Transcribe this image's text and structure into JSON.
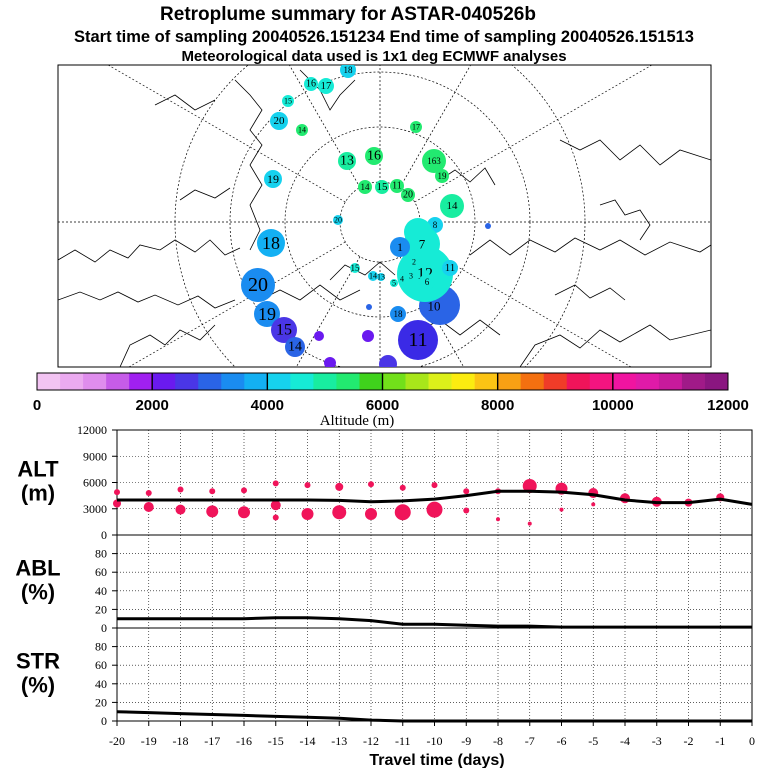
{
  "header": {
    "title": "Retroplume summary for ASTAR-040526b",
    "line2": "Start time of sampling 20040526.151234      End time of sampling 20040526.151513",
    "line3": "Meteorological data used is 1x1 deg ECMWF analyses"
  },
  "colorbar": {
    "label": "Altitude (m)",
    "ticks": [
      "0",
      "2000",
      "4000",
      "6000",
      "8000",
      "10000",
      "12000"
    ],
    "colors": [
      "#f3c4f3",
      "#ebaaf0",
      "#df8ded",
      "#c65ce8",
      "#a020f0",
      "#6a1aef",
      "#4a36e6",
      "#2a64e6",
      "#1a8cf0",
      "#13b0f3",
      "#16d2ee",
      "#16ebd6",
      "#18eda0",
      "#22ea70",
      "#3fd21c",
      "#72e01a",
      "#a8e61a",
      "#dcf01a",
      "#fcec10",
      "#fcc414",
      "#f8a014",
      "#f47010",
      "#f03c28",
      "#f0145a",
      "#f41480",
      "#f014a0",
      "#e01aa8",
      "#c81a9c",
      "#a01a88",
      "#8a1680"
    ]
  },
  "map_labels": [
    {
      "text": "18",
      "color": "#16d2ee"
    },
    {
      "text": "16",
      "color": "#16ebd6"
    },
    {
      "text": "17",
      "color": "#16ebd6"
    },
    {
      "text": "15",
      "color": "#16ebd6"
    },
    {
      "text": "20",
      "color": "#16d2ee"
    },
    {
      "text": "14",
      "color": "#22ea70"
    },
    {
      "text": "13",
      "color": "#18eda0"
    },
    {
      "text": "16",
      "color": "#22ea70"
    },
    {
      "text": "17",
      "color": "#22ea70"
    },
    {
      "text": "163",
      "color": "#22ea70"
    },
    {
      "text": "19",
      "color": "#22ea70"
    },
    {
      "text": "15",
      "color": "#18eda0"
    },
    {
      "text": "19",
      "color": "#16d2ee"
    },
    {
      "text": "14",
      "color": "#22ea70"
    },
    {
      "text": "11",
      "color": "#22ea70"
    },
    {
      "text": "20",
      "color": "#22ea70"
    },
    {
      "text": "14",
      "color": "#18eda0"
    },
    {
      "text": "8",
      "color": "#16d2ee"
    },
    {
      "text": "18",
      "color": "#13b0f3"
    },
    {
      "text": "20",
      "color": "#1a8cf0"
    },
    {
      "text": "19",
      "color": "#1a8cf0"
    },
    {
      "text": "15",
      "color": "#4a36e6"
    },
    {
      "text": "14",
      "color": "#2a64e6"
    },
    {
      "text": "11",
      "color": "#3a2ae6"
    },
    {
      "text": "13",
      "color": "#2a64e6"
    },
    {
      "text": "10",
      "color": "#2a64e6"
    },
    {
      "text": "12",
      "color": "#16ebd6"
    },
    {
      "text": "11",
      "color": "#16d2ee"
    },
    {
      "text": "9",
      "color": "#16ebd6"
    },
    {
      "text": "7",
      "color": "#16ebd6"
    },
    {
      "text": "6",
      "color": "#16ebd6"
    },
    {
      "text": "1",
      "color": "#1a8cf0"
    },
    {
      "text": "18",
      "color": "#1a8cf0"
    },
    {
      "text": "15",
      "color": "#16ebd6"
    },
    {
      "text": "14",
      "color": "#16d2ee"
    },
    {
      "text": "13",
      "color": "#16d2ee"
    },
    {
      "text": "5",
      "color": "#16ebd6"
    },
    {
      "text": "4",
      "color": "#16ebd6"
    },
    {
      "text": "3",
      "color": "#16ebd6"
    },
    {
      "text": "2",
      "color": "#16ebd6"
    },
    {
      "text": "20",
      "color": "#16d2ee"
    }
  ],
  "chart_data": [
    {
      "type": "scatter",
      "panel": "ALT",
      "ylabel_top": "ALT",
      "ylabel_bottom": "(m)",
      "xlabel": "Travel time (days)",
      "xlim": [
        -20,
        0
      ],
      "ylim": [
        0,
        12000
      ],
      "yticks": [
        "0",
        "3000",
        "6000",
        "9000",
        "12000"
      ],
      "xticks": [
        "-20",
        "-19",
        "-18",
        "-17",
        "-16",
        "-15",
        "-14",
        "-13",
        "-12",
        "-11",
        "-10",
        "-9",
        "-8",
        "-7",
        "-6",
        "-5",
        "-4",
        "-3",
        "-2",
        "-1",
        "0"
      ],
      "line": {
        "name": "mean altitude",
        "x": [
          -20,
          -19,
          -18,
          -17,
          -16,
          -15,
          -14,
          -13,
          -12,
          -11,
          -10,
          -9,
          -8,
          -7,
          -6,
          -5,
          -4,
          -3,
          -2,
          -1,
          0
        ],
        "y": [
          4000,
          4000,
          4000,
          4000,
          4000,
          4000,
          4000,
          3950,
          3800,
          3900,
          4100,
          4500,
          5000,
          5000,
          4900,
          4600,
          4000,
          3700,
          3700,
          4100,
          3500
        ]
      },
      "points": [
        {
          "x": -20,
          "y": 3600,
          "s": 4
        },
        {
          "x": -20,
          "y": 4900,
          "s": 3
        },
        {
          "x": -19,
          "y": 3200,
          "s": 5
        },
        {
          "x": -19,
          "y": 4800,
          "s": 3
        },
        {
          "x": -18,
          "y": 2900,
          "s": 5
        },
        {
          "x": -18,
          "y": 5200,
          "s": 3
        },
        {
          "x": -17,
          "y": 2700,
          "s": 6
        },
        {
          "x": -17,
          "y": 5000,
          "s": 3
        },
        {
          "x": -16,
          "y": 2600,
          "s": 6
        },
        {
          "x": -16,
          "y": 5100,
          "s": 3
        },
        {
          "x": -15,
          "y": 3400,
          "s": 5
        },
        {
          "x": -15,
          "y": 5900,
          "s": 3
        },
        {
          "x": -15,
          "y": 2000,
          "s": 3
        },
        {
          "x": -14,
          "y": 2400,
          "s": 6
        },
        {
          "x": -14,
          "y": 5700,
          "s": 3
        },
        {
          "x": -13,
          "y": 2600,
          "s": 7
        },
        {
          "x": -13,
          "y": 5500,
          "s": 4
        },
        {
          "x": -12,
          "y": 2400,
          "s": 6
        },
        {
          "x": -12,
          "y": 5800,
          "s": 3
        },
        {
          "x": -11,
          "y": 2600,
          "s": 8
        },
        {
          "x": -11,
          "y": 5400,
          "s": 3
        },
        {
          "x": -10,
          "y": 2900,
          "s": 8
        },
        {
          "x": -10,
          "y": 5700,
          "s": 3
        },
        {
          "x": -9,
          "y": 2800,
          "s": 3
        },
        {
          "x": -9,
          "y": 5000,
          "s": 3
        },
        {
          "x": -8,
          "y": 1800,
          "s": 2
        },
        {
          "x": -8,
          "y": 5000,
          "s": 3
        },
        {
          "x": -7,
          "y": 5600,
          "s": 7
        },
        {
          "x": -7,
          "y": 1300,
          "s": 2
        },
        {
          "x": -6,
          "y": 5300,
          "s": 6
        },
        {
          "x": -6,
          "y": 2900,
          "s": 2
        },
        {
          "x": -5,
          "y": 4800,
          "s": 5
        },
        {
          "x": -5,
          "y": 3500,
          "s": 2
        },
        {
          "x": -4,
          "y": 4200,
          "s": 5
        },
        {
          "x": -3,
          "y": 3800,
          "s": 5
        },
        {
          "x": -2,
          "y": 3700,
          "s": 4
        },
        {
          "x": -1,
          "y": 4300,
          "s": 4
        }
      ]
    },
    {
      "type": "line",
      "panel": "ABL",
      "ylabel_top": "ABL",
      "ylabel_bottom": "(%)",
      "xlim": [
        -20,
        0
      ],
      "ylim": [
        0,
        100
      ],
      "yticks": [
        "0",
        "20",
        "40",
        "60",
        "80"
      ],
      "x": [
        -20,
        -19,
        -18,
        -17,
        -16,
        -15,
        -14,
        -13,
        -12,
        -11,
        -10,
        -9,
        -8,
        -7,
        -6,
        -5,
        -4,
        -3,
        -2,
        -1,
        0
      ],
      "y": [
        10,
        10,
        10,
        10,
        10,
        11,
        11,
        10,
        8,
        4,
        4,
        3,
        2,
        2,
        1,
        1,
        1,
        1,
        1,
        1,
        1
      ]
    },
    {
      "type": "line",
      "panel": "STR",
      "ylabel_top": "STR",
      "ylabel_bottom": "(%)",
      "xlim": [
        -20,
        0
      ],
      "ylim": [
        0,
        100
      ],
      "yticks": [
        "0",
        "20",
        "40",
        "60",
        "80"
      ],
      "x": [
        -20,
        -19,
        -18,
        -17,
        -16,
        -15,
        -14,
        -13,
        -12,
        -11,
        -10,
        -9,
        -8,
        -7,
        -6,
        -5,
        -4,
        -3,
        -2,
        -1,
        0
      ],
      "y": [
        10,
        9,
        8,
        7,
        6,
        5,
        4,
        3,
        1,
        0,
        0,
        0,
        0,
        0,
        0,
        0,
        0,
        0,
        0,
        0,
        0
      ]
    }
  ]
}
